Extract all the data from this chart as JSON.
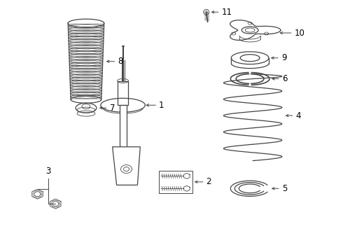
{
  "background_color": "#ffffff",
  "line_color": "#444444",
  "label_color": "#000000",
  "font_size": 8.5,
  "lw_thin": 0.6,
  "lw_med": 0.9,
  "lw_thick": 1.2
}
